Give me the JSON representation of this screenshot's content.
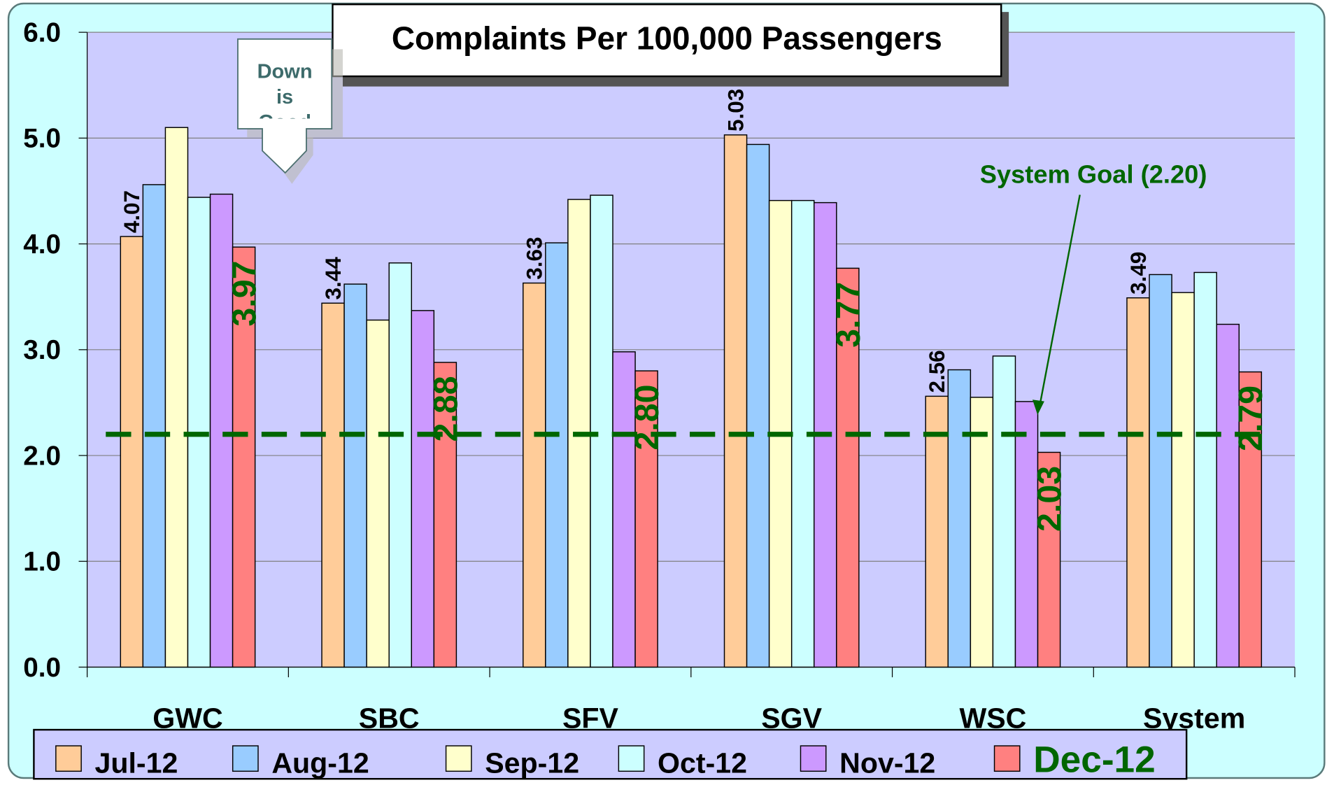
{
  "chart_data": {
    "type": "bar",
    "title": "Complaints Per 100,000 Passengers",
    "categories": [
      "GWC",
      "SBC",
      "SFV",
      "SGV",
      "WSC",
      "System"
    ],
    "series": [
      {
        "name": "Jul-12",
        "color": "#ffcc99",
        "values": [
          4.07,
          3.44,
          3.63,
          5.03,
          2.56,
          3.49
        ],
        "value_labels": [
          "4.07",
          "3.44",
          "3.63",
          "5.03",
          "2.56",
          "3.49"
        ]
      },
      {
        "name": "Aug-12",
        "color": "#99ccff",
        "values": [
          4.56,
          3.62,
          4.01,
          4.94,
          2.81,
          3.71
        ]
      },
      {
        "name": "Sep-12",
        "color": "#ffffcc",
        "values": [
          5.1,
          3.28,
          4.42,
          4.41,
          2.55,
          3.54
        ]
      },
      {
        "name": "Oct-12",
        "color": "#ccffff",
        "values": [
          4.44,
          3.82,
          4.46,
          4.41,
          2.94,
          3.73
        ]
      },
      {
        "name": "Nov-12",
        "color": "#cc99ff",
        "values": [
          4.47,
          3.37,
          2.98,
          4.39,
          2.51,
          3.24
        ]
      },
      {
        "name": "Dec-12",
        "color": "#ff8080",
        "values": [
          3.97,
          2.88,
          2.8,
          3.77,
          2.03,
          2.79
        ],
        "value_labels": [
          "3.97",
          "2.88",
          "2.80",
          "3.77",
          "2.03",
          "2.79"
        ]
      }
    ],
    "ylim": [
      0,
      6
    ],
    "yticks": [
      {
        "value": 0,
        "label": "0.0"
      },
      {
        "value": 1,
        "label": "1.0"
      },
      {
        "value": 2,
        "label": "2.0"
      },
      {
        "value": 3,
        "label": "3.0"
      },
      {
        "value": 4,
        "label": "4.0"
      },
      {
        "value": 5,
        "label": "5.0"
      },
      {
        "value": 6,
        "label": "6.0"
      }
    ],
    "goal": {
      "value": 2.2,
      "label": "System Goal (2.20)",
      "color": "#006600"
    },
    "annotation": "Down is Good",
    "grid": true,
    "legend": "bottom"
  }
}
